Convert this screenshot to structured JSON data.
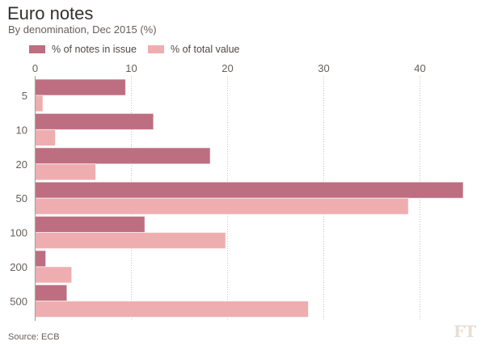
{
  "header": {
    "title": "Euro notes",
    "subtitle": "By denomination, Dec 2015 (%)"
  },
  "legend": [
    {
      "label": "% of notes in issue",
      "color": "#bd6e80"
    },
    {
      "label": "% of total value",
      "color": "#eeaeb0"
    }
  ],
  "footer": {
    "source": "Source: ECB",
    "logo": "FT"
  },
  "chart_data": {
    "type": "bar",
    "orientation": "horizontal",
    "title": "Euro notes",
    "subtitle": "By denomination, Dec 2015 (%)",
    "xlabel": "",
    "ylabel": "",
    "categories": [
      "5",
      "10",
      "20",
      "50",
      "100",
      "200",
      "500"
    ],
    "series": [
      {
        "name": "% of notes in issue",
        "color": "#bd6e80",
        "values": [
          9.4,
          12.3,
          18.2,
          44.5,
          11.4,
          1.1,
          3.3
        ]
      },
      {
        "name": "% of total value",
        "color": "#eeaeb0",
        "values": [
          0.8,
          2.1,
          6.3,
          38.8,
          19.8,
          3.8,
          28.4
        ]
      }
    ],
    "xlim": [
      0,
      46
    ],
    "xticks": [
      0,
      10,
      20,
      30,
      40
    ],
    "xtick_position": "top",
    "grid": "vertical dotted",
    "legend_position": "top-left",
    "source": "Source: ECB"
  }
}
